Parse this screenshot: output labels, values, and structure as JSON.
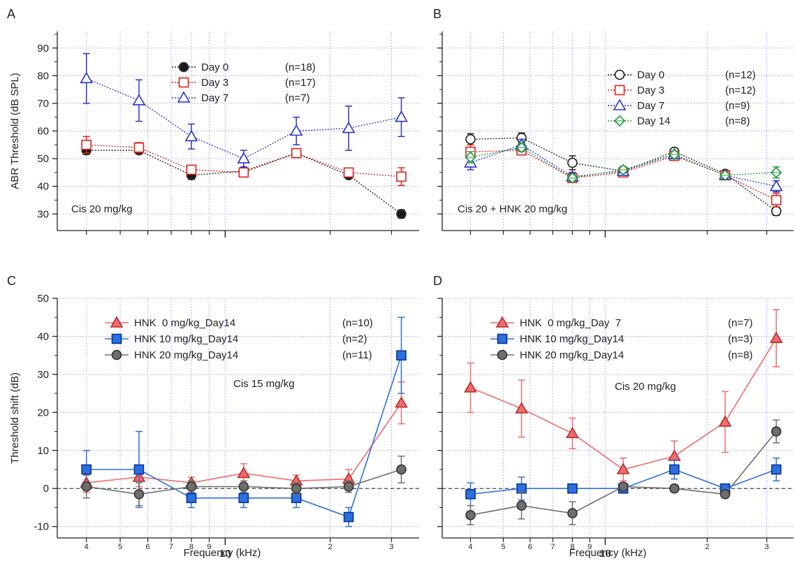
{
  "figure": {
    "xlabel": "Frequency (kHz)",
    "x_major_label": "10"
  },
  "chart_data": [
    {
      "panel": "A",
      "type": "line",
      "ylabel": "ABR Threshold (dB SPL)",
      "xlabel": "",
      "ylim": [
        24,
        96
      ],
      "yticks": [
        30,
        40,
        50,
        60,
        70,
        80,
        90
      ],
      "xscale": "log",
      "xlim": [
        3.3,
        36
      ],
      "annotation": "Cis 20 mg/kg",
      "legend_position": "top-center",
      "grid": "dotted",
      "series": [
        {
          "name": "Day 0",
          "n_label": "(n=18)",
          "color": "#1a1a1a",
          "marker": "circle",
          "line_style": "dotted",
          "x": [
            4,
            5.66,
            8,
            11.3,
            16,
            22.6,
            32
          ],
          "y": [
            53,
            53,
            44,
            45.5,
            52,
            44,
            30
          ],
          "err": [
            1.5,
            1.2,
            1.5,
            1.2,
            1.3,
            1.2,
            1.5
          ]
        },
        {
          "name": "Day 3",
          "n_label": "(n=17)",
          "color": "#e0201c",
          "marker": "square-open",
          "line_style": "dotted",
          "x": [
            4,
            5.66,
            8,
            11.3,
            16,
            22.6,
            32
          ],
          "y": [
            55,
            54,
            46,
            45,
            52,
            45,
            43.5
          ],
          "err": [
            3,
            1.8,
            1.5,
            1.2,
            1.3,
            1.5,
            3.2
          ]
        },
        {
          "name": "Day 7",
          "n_label": "(n=7)",
          "color": "#2a33c8",
          "marker": "triangle-open",
          "line_style": "dotted",
          "x": [
            4,
            5.66,
            8,
            11.3,
            16,
            22.6,
            32
          ],
          "y": [
            79,
            71,
            58,
            50,
            60,
            61,
            65
          ],
          "err": [
            9,
            7.5,
            4.5,
            3,
            5,
            8,
            7
          ]
        }
      ]
    },
    {
      "panel": "B",
      "type": "line",
      "ylabel": "",
      "xlabel": "",
      "ylim": [
        24,
        96
      ],
      "yticks": [
        30,
        40,
        50,
        60,
        70,
        80,
        90
      ],
      "xscale": "log",
      "xlim": [
        3.3,
        36
      ],
      "annotation": "Cis 20 + HNK 20 mg/kg",
      "legend_position": "top-right",
      "grid": "dotted",
      "series": [
        {
          "name": "Day 0",
          "n_label": "(n=12)",
          "color": "#1a1a1a",
          "marker": "circle-open",
          "line_style": "dotted",
          "x": [
            4,
            5.66,
            8,
            11.3,
            16,
            22.6,
            32
          ],
          "y": [
            57,
            57.5,
            48.5,
            45.5,
            52.5,
            44.5,
            31
          ],
          "err": [
            2,
            1.8,
            2.5,
            1.2,
            1.2,
            1.2,
            1.5
          ]
        },
        {
          "name": "Day 3",
          "n_label": "(n=12)",
          "color": "#e0201c",
          "marker": "square-open",
          "line_style": "dotted",
          "x": [
            4,
            5.66,
            8,
            11.3,
            16,
            22.6,
            32
          ],
          "y": [
            52.5,
            53,
            43,
            45,
            51,
            44,
            35
          ],
          "err": [
            2.5,
            1.5,
            1.5,
            1.2,
            1.2,
            1.2,
            2.5
          ]
        },
        {
          "name": "Day 7",
          "n_label": "(n=9)",
          "color": "#2a33c8",
          "marker": "triangle-open",
          "line_style": "dotted",
          "x": [
            4,
            5.66,
            8,
            11.3,
            16,
            22.6,
            32
          ],
          "y": [
            48.5,
            55,
            43.5,
            45.5,
            51.5,
            44,
            40
          ],
          "err": [
            2.5,
            2,
            1.5,
            1.2,
            1.2,
            1.2,
            2
          ]
        },
        {
          "name": "Day 14",
          "n_label": "(n=8)",
          "color": "#1f9a3a",
          "marker": "diamond-open",
          "line_style": "dotted",
          "x": [
            4,
            5.66,
            8,
            11.3,
            16,
            22.6,
            32
          ],
          "y": [
            50.5,
            54,
            43,
            46,
            51.5,
            44,
            45
          ],
          "err": [
            2,
            1.5,
            1.2,
            1.2,
            1.2,
            1.2,
            2
          ]
        }
      ]
    },
    {
      "panel": "C",
      "type": "line",
      "ylabel": "Threshold shift (dB)",
      "xlabel": "Frequency (kHz)",
      "ylim": [
        -13,
        50
      ],
      "yticks": [
        -10,
        0,
        10,
        20,
        30,
        40,
        50
      ],
      "xscale": "log",
      "xlim": [
        3.3,
        36
      ],
      "annotation": "Cis 15 mg/kg",
      "legend_position": "top",
      "grid": "dotted",
      "zero_line": true,
      "series": [
        {
          "name": "HNK  0 mg/kg_Day14",
          "n_label": "(n=10)",
          "color": "#f26a6a",
          "marker": "triangle",
          "line_style": "solid",
          "x": [
            4,
            5.66,
            8,
            11.3,
            16,
            22.6,
            32
          ],
          "y": [
            1.5,
            3,
            1.5,
            4,
            2,
            2.5,
            22.5
          ],
          "err": [
            2.5,
            2.5,
            1.5,
            2.5,
            1.5,
            2.5,
            5.5
          ]
        },
        {
          "name": "HNK 10 mg/kg_Day14",
          "n_label": "(n=2)",
          "color": "#2f6fdc",
          "marker": "square",
          "line_style": "solid",
          "x": [
            4,
            5.66,
            8,
            11.3,
            16,
            22.6,
            32
          ],
          "y": [
            5,
            5,
            -2.5,
            -2.5,
            -2.5,
            -7.5,
            35
          ],
          "err": [
            5,
            10,
            2.5,
            2.5,
            2.5,
            2.5,
            10
          ]
        },
        {
          "name": "HNK 20 mg/kg_Day14",
          "n_label": "(n=11)",
          "color": "#6e6e6e",
          "marker": "circle",
          "line_style": "solid",
          "x": [
            4,
            5.66,
            8,
            11.3,
            16,
            22.6,
            32
          ],
          "y": [
            0.5,
            -1.5,
            0.5,
            0.5,
            0,
            0.5,
            5
          ],
          "err": [
            3,
            3,
            1.5,
            1.5,
            1.5,
            1.5,
            3.5
          ]
        }
      ]
    },
    {
      "panel": "D",
      "type": "line",
      "ylabel": "",
      "xlabel": "Frequency (kHz)",
      "ylim": [
        -13,
        50
      ],
      "yticks": [
        -10,
        0,
        10,
        20,
        30,
        40,
        50
      ],
      "xscale": "log",
      "xlim": [
        3.3,
        36
      ],
      "annotation": "Cis 20 mg/kg",
      "legend_position": "top",
      "grid": "dotted",
      "zero_line": true,
      "series": [
        {
          "name": "HNK  0 mg/kg_Day  7",
          "n_label": "(n=7)",
          "color": "#f26a6a",
          "marker": "triangle",
          "line_style": "solid",
          "x": [
            4,
            5.66,
            8,
            11.3,
            16,
            22.6,
            32
          ],
          "y": [
            26.5,
            21,
            14.5,
            5,
            8.5,
            17.5,
            39.5
          ],
          "err": [
            6.5,
            7.5,
            4,
            3,
            4,
            8,
            7.5
          ]
        },
        {
          "name": "HNK 10 mg/kg_Day14",
          "n_label": "(n=3)",
          "color": "#2f6fdc",
          "marker": "square",
          "line_style": "solid",
          "x": [
            4,
            5.66,
            8,
            11.3,
            16,
            22.6,
            32
          ],
          "y": [
            -1.5,
            0,
            0,
            0,
            5,
            0,
            5
          ],
          "err": [
            3,
            3,
            1,
            1,
            2.5,
            1,
            3
          ]
        },
        {
          "name": "HNK 20 mg/kg_Day14",
          "n_label": "(n=8)",
          "color": "#6e6e6e",
          "marker": "circle",
          "line_style": "solid",
          "x": [
            4,
            5.66,
            8,
            11.3,
            16,
            22.6,
            32
          ],
          "y": [
            -7,
            -4.5,
            -6.5,
            0.5,
            0,
            -1.5,
            15
          ],
          "err": [
            2.5,
            3.5,
            3,
            1,
            1,
            1,
            3
          ]
        }
      ]
    }
  ]
}
